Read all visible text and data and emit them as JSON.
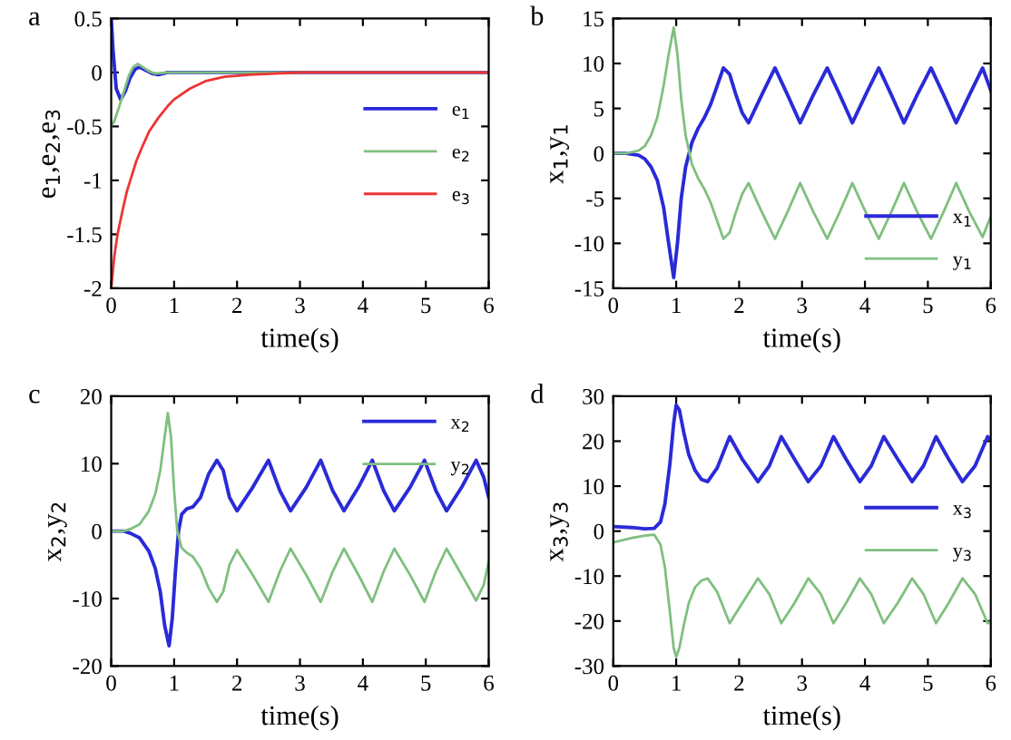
{
  "chart_data": [
    {
      "type": "line",
      "xlabel": "time(s)",
      "ylabel": "e$_{1}$,e$_{2}$,e$_{3}$",
      "annotations": [
        "a"
      ],
      "legend": "right",
      "xlim": [
        0,
        6
      ],
      "ylim": [
        -2,
        0.5
      ],
      "xticks": [
        0,
        1,
        2,
        3,
        4,
        5,
        6
      ],
      "yticks": [
        -2,
        -1.5,
        -1,
        -0.5,
        0,
        0.5
      ],
      "series": [
        {
          "name": "e$_{1}$",
          "color": "#2a2ad8",
          "x": [
            0,
            0.03,
            0.08,
            0.15,
            0.22,
            0.3,
            0.38,
            0.45,
            0.55,
            0.65,
            0.75,
            0.9,
            1.2,
            6
          ],
          "values": [
            0.5,
            0.2,
            -0.15,
            -0.25,
            -0.18,
            -0.05,
            0.03,
            0.05,
            0.02,
            -0.01,
            -0.02,
            0,
            0,
            0
          ]
        },
        {
          "name": "e$_{2}$",
          "color": "#7fbf7f",
          "x": [
            0,
            0.05,
            0.12,
            0.2,
            0.28,
            0.35,
            0.42,
            0.5,
            0.6,
            0.7,
            0.9,
            1.2,
            6
          ],
          "values": [
            -0.5,
            -0.45,
            -0.33,
            -0.18,
            -0.03,
            0.05,
            0.08,
            0.05,
            0.01,
            -0.01,
            0,
            0,
            0
          ]
        },
        {
          "name": "e$_{3}$",
          "color": "#ee3333",
          "x": [
            0,
            0.05,
            0.1,
            0.18,
            0.25,
            0.33,
            0.4,
            0.5,
            0.6,
            0.75,
            0.9,
            1.0,
            1.25,
            1.5,
            1.8,
            2.2,
            2.6,
            3,
            6
          ],
          "values": [
            -2,
            -1.7,
            -1.5,
            -1.28,
            -1.1,
            -0.95,
            -0.82,
            -0.68,
            -0.55,
            -0.42,
            -0.31,
            -0.25,
            -0.15,
            -0.08,
            -0.04,
            -0.02,
            -0.01,
            0,
            0
          ]
        }
      ]
    },
    {
      "type": "line",
      "xlabel": "time(s)",
      "ylabel": "x$_{1}$,y$_{1}$",
      "annotations": [
        "b"
      ],
      "legend": "bottom right",
      "xlim": [
        0,
        6
      ],
      "ylim": [
        -15,
        15
      ],
      "xticks": [
        0,
        1,
        2,
        3,
        4,
        5,
        6
      ],
      "yticks": [
        -15,
        -10,
        -5,
        0,
        5,
        10,
        15
      ],
      "series": [
        {
          "name": "x$_{1}$",
          "color": "#2a2ad8",
          "x": [
            0,
            0.2,
            0.4,
            0.5,
            0.6,
            0.7,
            0.8,
            0.88,
            0.96,
            1.02,
            1.08,
            1.15,
            1.25,
            1.35,
            1.45,
            1.55,
            1.65,
            1.75,
            1.85,
            1.95,
            2.05,
            2.15,
            2.36,
            2.57,
            2.77,
            2.97,
            3.18,
            3.4,
            3.6,
            3.8,
            4.01,
            4.22,
            4.42,
            4.62,
            4.83,
            5.05,
            5.25,
            5.45,
            5.66,
            5.87,
            6
          ],
          "values": [
            0,
            0,
            -0.2,
            -0.6,
            -1.5,
            -3,
            -6,
            -10,
            -13.8,
            -10,
            -5,
            -1.5,
            1.2,
            2.8,
            4,
            5.5,
            7.5,
            9.5,
            8.8,
            6.5,
            4.5,
            3.4,
            6.5,
            9.5,
            6.5,
            3.4,
            6.5,
            9.5,
            6.5,
            3.4,
            6.5,
            9.5,
            6.5,
            3.4,
            6.5,
            9.5,
            6.5,
            3.4,
            6.5,
            9.5,
            7
          ]
        },
        {
          "name": "y$_{1}$",
          "color": "#7fbf7f",
          "x": [
            0,
            0.2,
            0.4,
            0.5,
            0.6,
            0.7,
            0.8,
            0.88,
            0.96,
            1.02,
            1.08,
            1.15,
            1.25,
            1.35,
            1.45,
            1.55,
            1.65,
            1.75,
            1.85,
            1.95,
            2.05,
            2.15,
            2.36,
            2.57,
            2.77,
            2.97,
            3.18,
            3.4,
            3.6,
            3.8,
            4.01,
            4.22,
            4.42,
            4.62,
            4.83,
            5.05,
            5.25,
            5.45,
            5.66,
            5.87,
            6
          ],
          "values": [
            0,
            0,
            0.3,
            0.8,
            2,
            4,
            7.5,
            11,
            14,
            11,
            6,
            2,
            -1.2,
            -2.8,
            -4,
            -5.5,
            -7.5,
            -9.5,
            -8.8,
            -6.5,
            -4.5,
            -3.3,
            -6.5,
            -9.5,
            -6.5,
            -3.3,
            -6.5,
            -9.5,
            -6.5,
            -3.3,
            -6.5,
            -9.5,
            -6.5,
            -3.3,
            -6.5,
            -9.5,
            -6.5,
            -3.3,
            -6.5,
            -9.3,
            -7
          ]
        }
      ]
    },
    {
      "type": "line",
      "xlabel": "time(s)",
      "ylabel": "x$_{2}$,y$_{2}$",
      "annotations": [
        "c"
      ],
      "legend": "top right",
      "xlim": [
        0,
        6
      ],
      "ylim": [
        -20,
        20
      ],
      "xticks": [
        0,
        1,
        2,
        3,
        4,
        5,
        6
      ],
      "yticks": [
        -20,
        -10,
        0,
        10,
        20
      ],
      "series": [
        {
          "name": "x$_{2}$",
          "color": "#2a2ad8",
          "x": [
            0,
            0.2,
            0.3,
            0.45,
            0.6,
            0.7,
            0.78,
            0.85,
            0.92,
            0.97,
            1.02,
            1.07,
            1.12,
            1.2,
            1.3,
            1.42,
            1.55,
            1.68,
            1.78,
            1.88,
            2.0,
            2.25,
            2.5,
            2.68,
            2.85,
            3.1,
            3.33,
            3.52,
            3.7,
            3.93,
            4.15,
            4.33,
            4.5,
            4.75,
            4.98,
            5.16,
            5.33,
            5.57,
            5.8,
            5.92,
            6
          ],
          "values": [
            0,
            0,
            -0.3,
            -1,
            -3,
            -5.5,
            -9,
            -14,
            -17,
            -13,
            -6,
            0,
            2.5,
            3.3,
            3.6,
            5,
            8.5,
            10.5,
            9,
            5,
            3,
            6.5,
            10.5,
            6,
            3,
            6.5,
            10.5,
            6,
            3,
            6.5,
            10.5,
            6,
            3,
            6.5,
            10.5,
            6,
            3,
            6.5,
            10.5,
            8,
            5
          ]
        },
        {
          "name": "y$_{2}$",
          "color": "#7fbf7f",
          "x": [
            0,
            0.2,
            0.3,
            0.45,
            0.6,
            0.7,
            0.78,
            0.85,
            0.9,
            0.95,
            1.0,
            1.05,
            1.12,
            1.2,
            1.3,
            1.42,
            1.55,
            1.68,
            1.78,
            1.88,
            2.0,
            2.25,
            2.5,
            2.68,
            2.85,
            3.1,
            3.33,
            3.52,
            3.7,
            3.93,
            4.15,
            4.33,
            4.5,
            4.75,
            4.98,
            5.16,
            5.33,
            5.57,
            5.8,
            5.92,
            6
          ],
          "values": [
            0,
            0,
            0.3,
            1,
            3,
            5.5,
            9,
            14,
            17.5,
            14,
            6,
            0,
            -2.5,
            -3.2,
            -3.8,
            -5.5,
            -8.5,
            -10.5,
            -9,
            -5,
            -2.8,
            -6.5,
            -10.5,
            -6,
            -2.6,
            -6.5,
            -10.5,
            -6,
            -2.6,
            -6.5,
            -10.5,
            -6,
            -2.6,
            -6.5,
            -10.5,
            -6,
            -2.6,
            -6.5,
            -10.3,
            -8,
            -4.5
          ]
        }
      ]
    },
    {
      "type": "line",
      "xlabel": "time(s)",
      "ylabel": "x$_{3}$,y$_{3}$",
      "annotations": [
        "d"
      ],
      "legend": "right",
      "xlim": [
        0,
        6
      ],
      "ylim": [
        -30,
        30
      ],
      "xticks": [
        0,
        1,
        2,
        3,
        4,
        5,
        6
      ],
      "yticks": [
        -30,
        -20,
        -10,
        0,
        10,
        20,
        30
      ],
      "series": [
        {
          "name": "x$_{3}$",
          "color": "#2a2ad8",
          "x": [
            0,
            0.3,
            0.5,
            0.65,
            0.75,
            0.82,
            0.9,
            0.96,
            1.0,
            1.05,
            1.12,
            1.2,
            1.3,
            1.4,
            1.5,
            1.65,
            1.85,
            2.05,
            2.3,
            2.48,
            2.67,
            2.88,
            3.1,
            3.3,
            3.5,
            3.7,
            3.92,
            4.1,
            4.3,
            4.52,
            4.75,
            4.93,
            5.13,
            5.33,
            5.55,
            5.75,
            5.95,
            6
          ],
          "values": [
            1,
            0.8,
            0.5,
            0.6,
            2,
            6,
            15,
            24,
            28,
            27,
            22,
            17,
            13.5,
            11.5,
            11,
            14,
            21,
            16,
            11,
            14.5,
            21,
            16,
            11,
            14.5,
            21,
            16,
            11,
            14.5,
            21,
            16,
            11,
            14.5,
            21,
            16,
            11,
            14.5,
            21,
            20.5
          ]
        },
        {
          "name": "y$_{3}$",
          "color": "#7fbf7f",
          "x": [
            0,
            0.3,
            0.5,
            0.65,
            0.75,
            0.82,
            0.9,
            0.96,
            1.0,
            1.05,
            1.12,
            1.2,
            1.3,
            1.4,
            1.5,
            1.65,
            1.85,
            2.05,
            2.3,
            2.48,
            2.67,
            2.88,
            3.1,
            3.3,
            3.5,
            3.7,
            3.92,
            4.1,
            4.3,
            4.52,
            4.75,
            4.93,
            5.13,
            5.33,
            5.55,
            5.75,
            5.95,
            6
          ],
          "values": [
            -2.5,
            -1.5,
            -1,
            -0.8,
            -3,
            -8,
            -18,
            -26,
            -28,
            -26,
            -21,
            -16,
            -12.5,
            -11,
            -10.5,
            -13.5,
            -20.5,
            -16,
            -10.5,
            -14,
            -20.5,
            -16,
            -10.5,
            -14,
            -20.5,
            -16,
            -10.5,
            -14,
            -20.5,
            -16,
            -10.5,
            -14,
            -20.5,
            -16,
            -10.5,
            -14,
            -20.5,
            -20
          ]
        }
      ]
    }
  ]
}
